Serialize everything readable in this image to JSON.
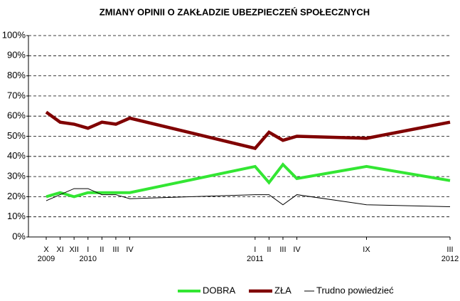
{
  "chart_data": {
    "type": "line",
    "title": "ZMIANY OPINII O ZAKŁADZIE UBEZPIECZEŃ SPOŁECZNYCH",
    "x": [
      "2009-10",
      "2009-11",
      "2009-12",
      "2010-01",
      "2010-02",
      "2010-03",
      "2010-04",
      "2011-01",
      "2011-02",
      "2011-03",
      "2011-04",
      "2011-09",
      "2012-03"
    ],
    "x_labels": [
      "X",
      "XI",
      "XII",
      "I",
      "II",
      "III",
      "IV",
      "I",
      "II",
      "III",
      "IV",
      "IX",
      "III"
    ],
    "year_labels": [
      "2009",
      null,
      null,
      "2010",
      null,
      null,
      null,
      "2011",
      null,
      null,
      null,
      null,
      "2012"
    ],
    "series": [
      {
        "name": "DOBRA",
        "color": "#33e633",
        "width": 4,
        "values": [
          20,
          22,
          20,
          22,
          22,
          22,
          22,
          35,
          27,
          36,
          29,
          35,
          28
        ]
      },
      {
        "name": "ZŁA",
        "color": "#800000",
        "width": 4.5,
        "values": [
          62,
          57,
          56,
          54,
          57,
          56,
          59,
          44,
          52,
          48,
          50,
          49,
          57
        ]
      },
      {
        "name": "Trudno powiedzieć",
        "color": "#000000",
        "width": 1,
        "values": [
          18,
          21,
          24,
          24,
          21,
          21,
          19,
          21,
          21,
          16,
          21,
          16,
          15
        ]
      }
    ],
    "ylim": [
      0,
      100
    ],
    "yticks": [
      {
        "value": 0,
        "label": "0%"
      },
      {
        "value": 10,
        "label": "10%"
      },
      {
        "value": 20,
        "label": "20%"
      },
      {
        "value": 30,
        "label": "30%"
      },
      {
        "value": 40,
        "label": "40%"
      },
      {
        "value": 50,
        "label": "50%"
      },
      {
        "value": 60,
        "label": "60%"
      },
      {
        "value": 70,
        "label": "70%"
      },
      {
        "value": 80,
        "label": "80%"
      },
      {
        "value": 90,
        "label": "90%"
      },
      {
        "value": 100,
        "label": "100%"
      }
    ],
    "grid": true,
    "legend": "bottom"
  }
}
